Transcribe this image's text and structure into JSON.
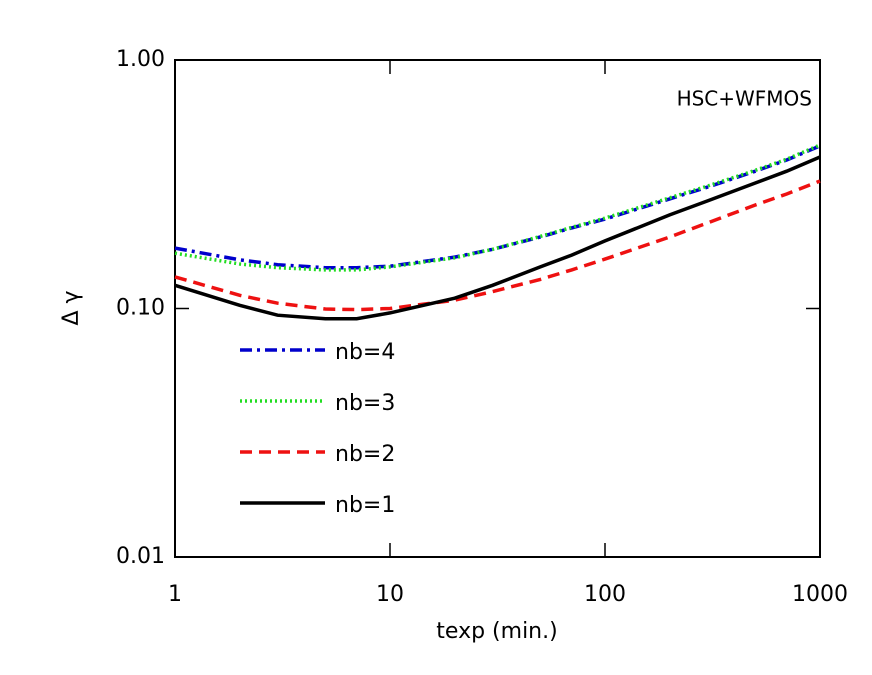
{
  "chart_data": {
    "type": "line",
    "annotation": "HSC+WFMOS",
    "xlabel": "texp (min.)",
    "ylabel": "Δ γ",
    "log_x": true,
    "log_y": true,
    "x": [
      1,
      2,
      3,
      5,
      7,
      10,
      20,
      30,
      50,
      70,
      100,
      200,
      300,
      500,
      700,
      1000
    ],
    "series": [
      {
        "name": "nb=4",
        "color": "#0000cc",
        "style": "dash-dot",
        "values": [
          0.175,
          0.157,
          0.15,
          0.146,
          0.146,
          0.148,
          0.161,
          0.173,
          0.194,
          0.211,
          0.229,
          0.276,
          0.308,
          0.357,
          0.396,
          0.451
        ]
      },
      {
        "name": "nb=3",
        "color": "#22dd22",
        "style": "dotted",
        "values": [
          0.167,
          0.151,
          0.146,
          0.143,
          0.143,
          0.147,
          0.16,
          0.173,
          0.195,
          0.212,
          0.231,
          0.279,
          0.311,
          0.36,
          0.399,
          0.455
        ]
      },
      {
        "name": "nb=2",
        "color": "#ee1111",
        "style": "dashed",
        "values": [
          0.134,
          0.113,
          0.105,
          0.0995,
          0.099,
          0.1,
          0.108,
          0.117,
          0.131,
          0.143,
          0.158,
          0.194,
          0.221,
          0.261,
          0.289,
          0.326
        ]
      },
      {
        "name": "nb=1",
        "color": "#000000",
        "style": "solid",
        "values": [
          0.124,
          0.103,
          0.094,
          0.091,
          0.091,
          0.096,
          0.11,
          0.124,
          0.147,
          0.164,
          0.187,
          0.238,
          0.271,
          0.32,
          0.357,
          0.407
        ]
      }
    ],
    "xlim": [
      1,
      1000
    ],
    "ylim": [
      0.01,
      1
    ],
    "xticks": [
      1,
      10,
      100,
      1000
    ],
    "yticks": [
      {
        "value": 0.01,
        "label": "0.01"
      },
      {
        "value": 0.1,
        "label": "0.10"
      },
      {
        "value": 1,
        "label": "1.00"
      }
    ]
  }
}
